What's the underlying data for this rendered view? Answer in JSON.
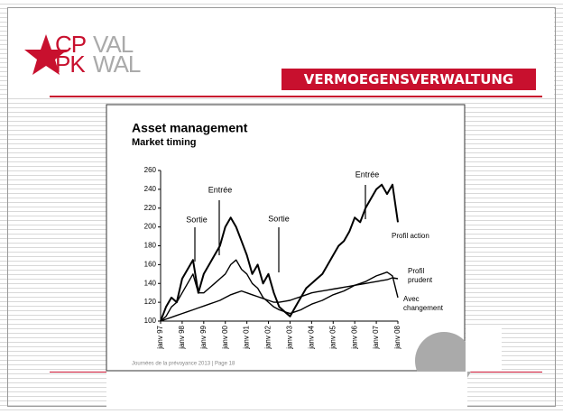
{
  "slide": {
    "logo_top_left": "CP",
    "logo_top_right": "VAL",
    "logo_bottom_left": "PK",
    "logo_bottom_right": "WAL",
    "banner": "VERMOEGENSVERWALTUNG",
    "footer": "Journées de la prévoyance 2013 | Page 18"
  },
  "chart_data": {
    "type": "line",
    "title": "Asset management",
    "subtitle": "Market timing",
    "categories": [
      "janv 97",
      null,
      null,
      null,
      "janv 98",
      null,
      null,
      null,
      "janv 99",
      null,
      null,
      null,
      "janv 00",
      null,
      null,
      null,
      "janv 01",
      null,
      null,
      null,
      "janv 02",
      null,
      null,
      null,
      "janv 03",
      null,
      null,
      null,
      "janv 04",
      null,
      null,
      null,
      "janv 05",
      null,
      null,
      null,
      "janv 06",
      null,
      null,
      null,
      "janv 07",
      null,
      null,
      null,
      "janv 08"
    ],
    "series": [
      {
        "name": "Profil action",
        "color": "#000000",
        "values": [
          100,
          115,
          125,
          120,
          145,
          155,
          165,
          130,
          150,
          160,
          170,
          180,
          200,
          210,
          200,
          185,
          170,
          150,
          160,
          140,
          150,
          130,
          115,
          110,
          105,
          115,
          125,
          135,
          140,
          145,
          150,
          160,
          170,
          180,
          185,
          195,
          210,
          205,
          220,
          230,
          240,
          245,
          235,
          245,
          205
        ]
      },
      {
        "name": "Profil prudent",
        "color": "#000000",
        "values": [
          100,
          102,
          104,
          106,
          108,
          110,
          112,
          114,
          116,
          118,
          120,
          122,
          125,
          128,
          130,
          132,
          130,
          128,
          126,
          124,
          122,
          120,
          120,
          121,
          122,
          124,
          126,
          128,
          130,
          131,
          132,
          133,
          134,
          135,
          136,
          137,
          138,
          139,
          140,
          141,
          142,
          143,
          144,
          146,
          145
        ]
      },
      {
        "name": "Avec changement",
        "color": "#000000",
        "values": [
          100,
          105,
          115,
          120,
          130,
          140,
          150,
          130,
          130,
          135,
          140,
          145,
          150,
          160,
          165,
          155,
          150,
          140,
          135,
          125,
          120,
          115,
          112,
          110,
          108,
          110,
          112,
          115,
          118,
          120,
          122,
          125,
          128,
          130,
          132,
          135,
          138,
          140,
          142,
          145,
          148,
          150,
          152,
          148,
          125
        ]
      }
    ],
    "annotations": [
      "Sortie",
      "Entrée",
      "Sortie",
      "Entrée"
    ],
    "ylim": [
      100,
      260
    ],
    "yticks": [
      100,
      120,
      140,
      160,
      180,
      200,
      220,
      240,
      260
    ]
  }
}
